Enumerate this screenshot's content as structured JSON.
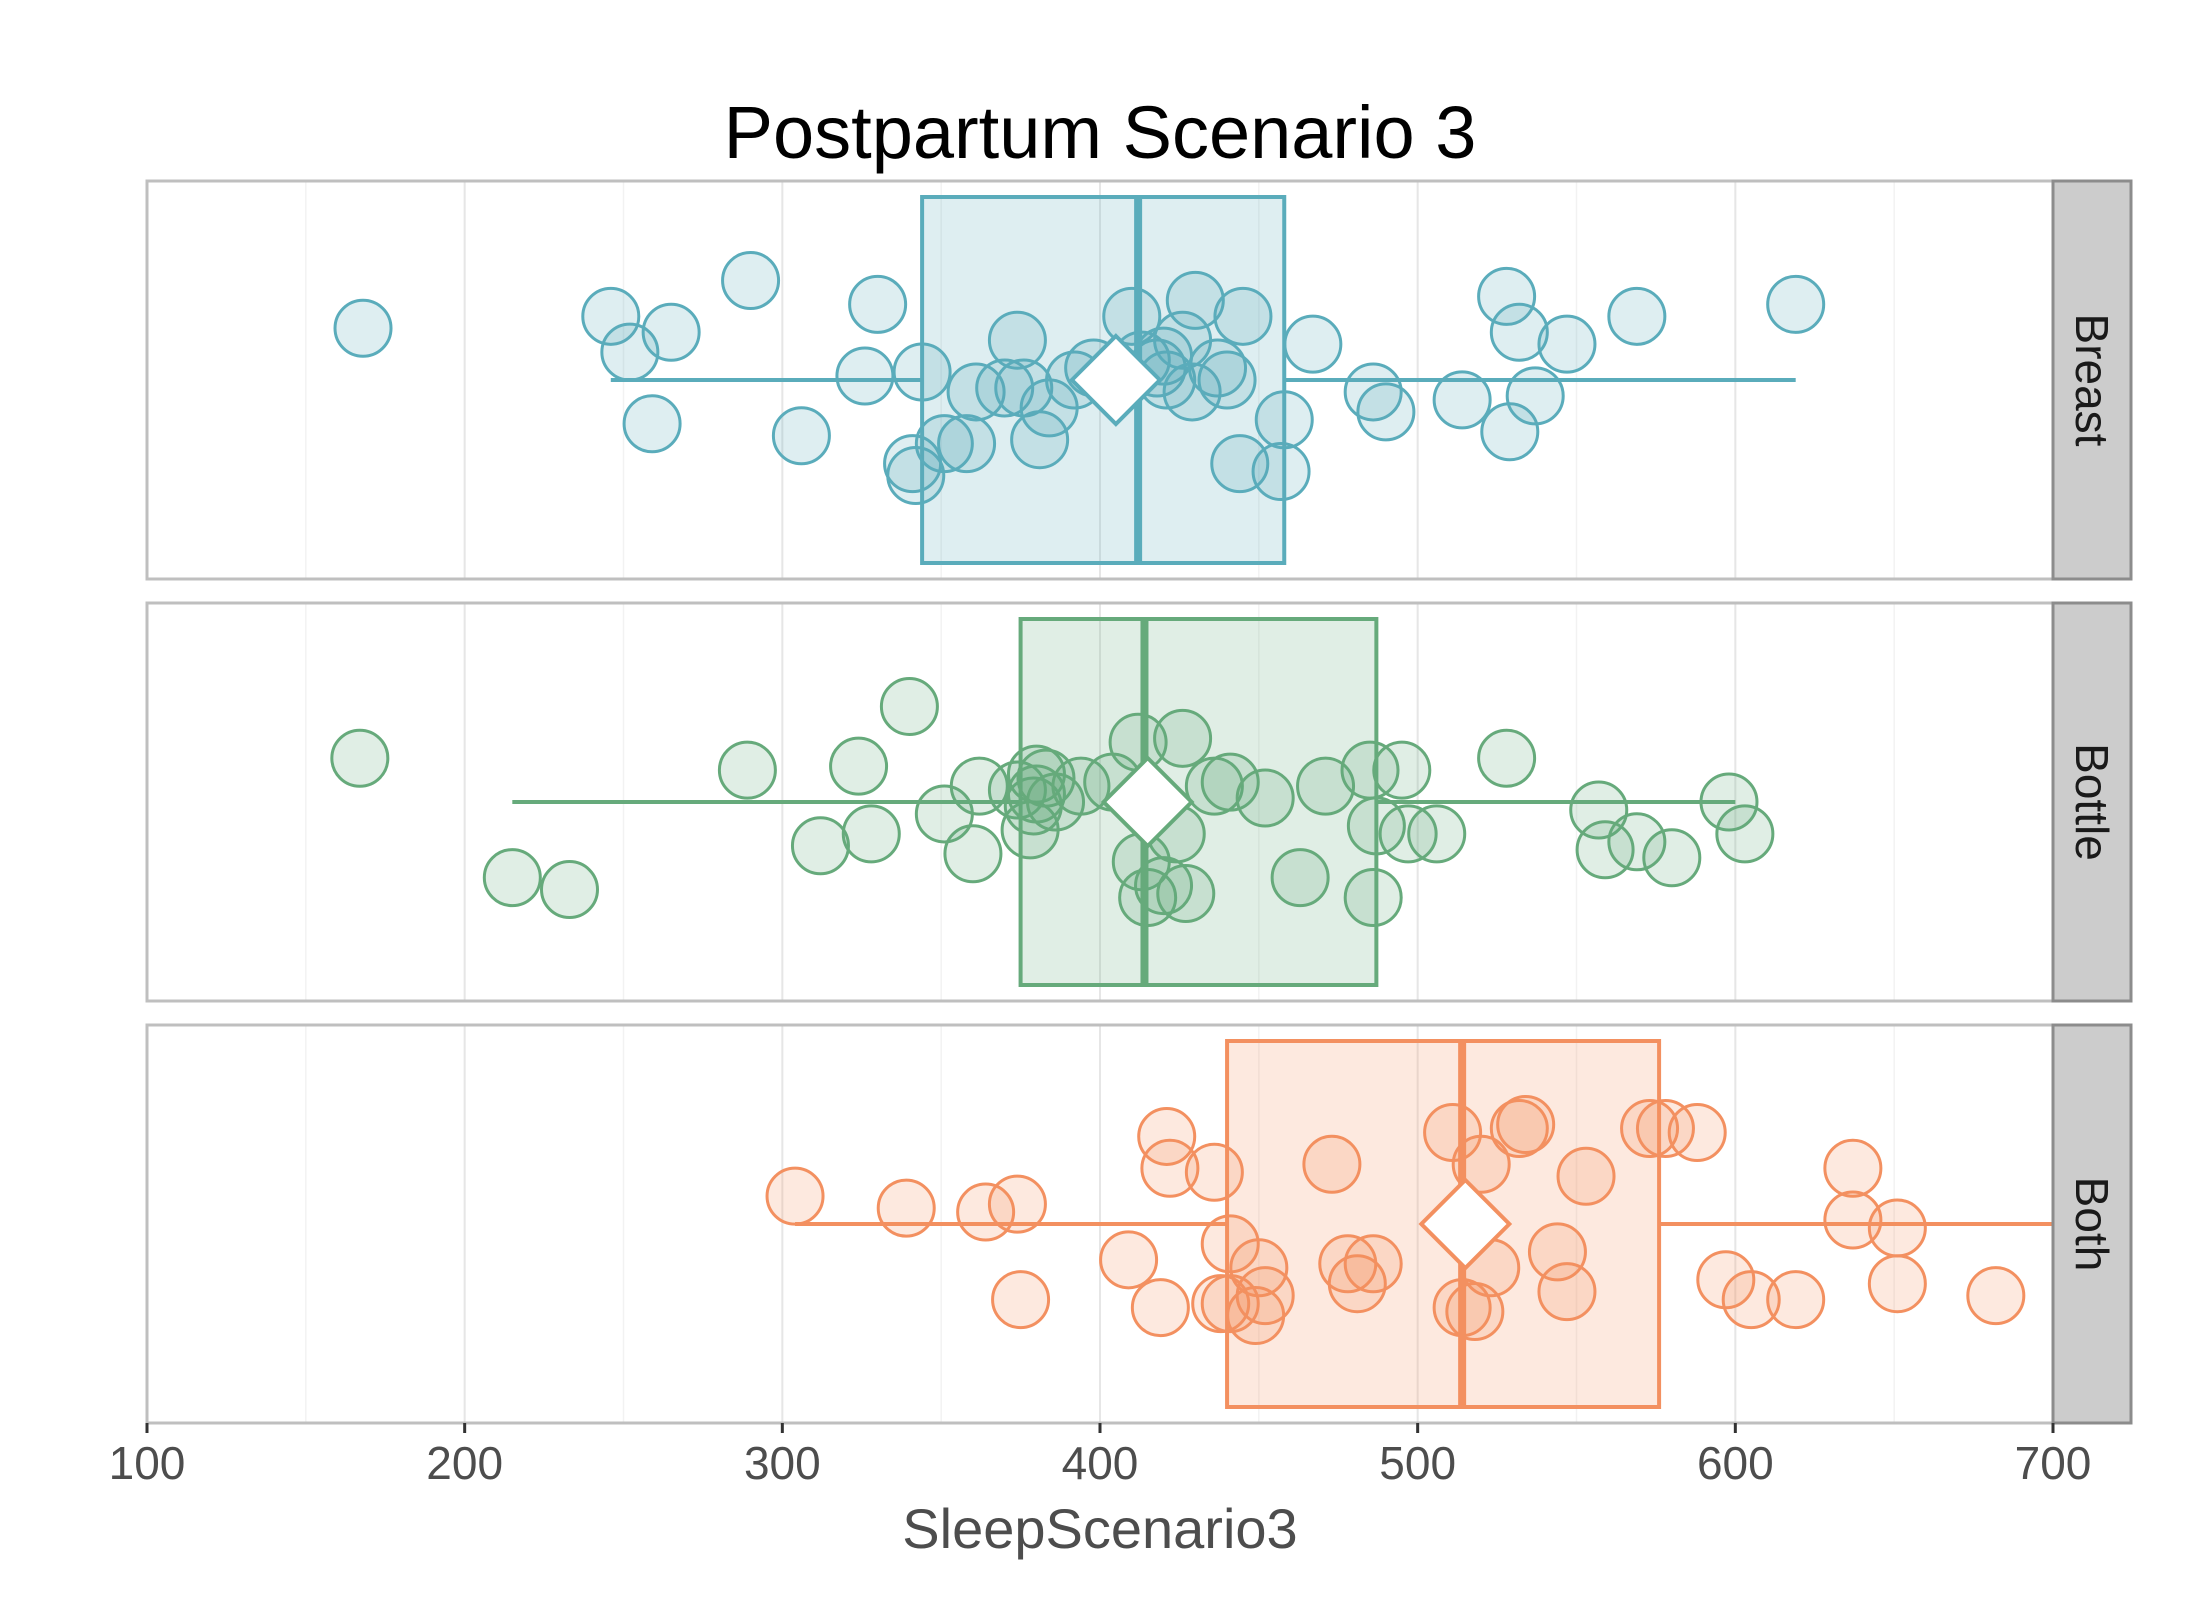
{
  "chart_data": {
    "type": "boxplot",
    "title": "Postpartum Scenario 3",
    "xlabel": "SleepScenario3",
    "xlim": [
      100,
      700
    ],
    "xticks": [
      100,
      200,
      300,
      400,
      500,
      600,
      700
    ],
    "grid": true,
    "colors": {
      "Breast": "#5aacbb",
      "Bottle": "#66aa7b",
      "Both": "#f39060"
    },
    "panels": [
      {
        "name": "Breast",
        "box": {
          "whisker_low": 246,
          "q1": 344,
          "median": 412,
          "q3": 458,
          "whisker_high": 619,
          "mean": 405
        },
        "points": [
          {
            "x": 168,
            "y": 0.63
          },
          {
            "x": 246,
            "y": 0.66
          },
          {
            "x": 252,
            "y": 0.57
          },
          {
            "x": 265,
            "y": 0.62
          },
          {
            "x": 259,
            "y": 0.39
          },
          {
            "x": 290,
            "y": 0.75
          },
          {
            "x": 306,
            "y": 0.36
          },
          {
            "x": 326,
            "y": 0.51
          },
          {
            "x": 330,
            "y": 0.69
          },
          {
            "x": 341,
            "y": 0.29
          },
          {
            "x": 342,
            "y": 0.26
          },
          {
            "x": 344,
            "y": 0.52
          },
          {
            "x": 351,
            "y": 0.34
          },
          {
            "x": 358,
            "y": 0.34
          },
          {
            "x": 361,
            "y": 0.47
          },
          {
            "x": 370,
            "y": 0.48
          },
          {
            "x": 374,
            "y": 0.6
          },
          {
            "x": 376,
            "y": 0.48
          },
          {
            "x": 381,
            "y": 0.35
          },
          {
            "x": 384,
            "y": 0.43
          },
          {
            "x": 392,
            "y": 0.5
          },
          {
            "x": 398,
            "y": 0.53
          },
          {
            "x": 410,
            "y": 0.66
          },
          {
            "x": 413,
            "y": 0.55
          },
          {
            "x": 418,
            "y": 0.53
          },
          {
            "x": 420,
            "y": 0.56
          },
          {
            "x": 421,
            "y": 0.5
          },
          {
            "x": 426,
            "y": 0.6
          },
          {
            "x": 429,
            "y": 0.47
          },
          {
            "x": 430,
            "y": 0.7
          },
          {
            "x": 437,
            "y": 0.53
          },
          {
            "x": 440,
            "y": 0.5
          },
          {
            "x": 444,
            "y": 0.29
          },
          {
            "x": 445,
            "y": 0.66
          },
          {
            "x": 457,
            "y": 0.27
          },
          {
            "x": 458,
            "y": 0.4
          },
          {
            "x": 467,
            "y": 0.59
          },
          {
            "x": 486,
            "y": 0.47
          },
          {
            "x": 490,
            "y": 0.42
          },
          {
            "x": 514,
            "y": 0.45
          },
          {
            "x": 528,
            "y": 0.71
          },
          {
            "x": 529,
            "y": 0.37
          },
          {
            "x": 532,
            "y": 0.62
          },
          {
            "x": 537,
            "y": 0.46
          },
          {
            "x": 547,
            "y": 0.59
          },
          {
            "x": 569,
            "y": 0.66
          },
          {
            "x": 619,
            "y": 0.69
          }
        ]
      },
      {
        "name": "Bottle",
        "box": {
          "whisker_low": 215,
          "q1": 375,
          "median": 414,
          "q3": 487,
          "whisker_high": 600,
          "mean": 415
        },
        "points": [
          {
            "x": 167,
            "y": 0.61
          },
          {
            "x": 215,
            "y": 0.31
          },
          {
            "x": 233,
            "y": 0.28
          },
          {
            "x": 289,
            "y": 0.58
          },
          {
            "x": 312,
            "y": 0.39
          },
          {
            "x": 324,
            "y": 0.59
          },
          {
            "x": 328,
            "y": 0.42
          },
          {
            "x": 340,
            "y": 0.74
          },
          {
            "x": 351,
            "y": 0.47
          },
          {
            "x": 360,
            "y": 0.37
          },
          {
            "x": 362,
            "y": 0.54
          },
          {
            "x": 374,
            "y": 0.53
          },
          {
            "x": 378,
            "y": 0.43
          },
          {
            "x": 379,
            "y": 0.49
          },
          {
            "x": 380,
            "y": 0.57
          },
          {
            "x": 380,
            "y": 0.52
          },
          {
            "x": 383,
            "y": 0.56
          },
          {
            "x": 386,
            "y": 0.5
          },
          {
            "x": 394,
            "y": 0.54
          },
          {
            "x": 404,
            "y": 0.55
          },
          {
            "x": 412,
            "y": 0.65
          },
          {
            "x": 413,
            "y": 0.35
          },
          {
            "x": 415,
            "y": 0.26
          },
          {
            "x": 420,
            "y": 0.29
          },
          {
            "x": 424,
            "y": 0.42
          },
          {
            "x": 426,
            "y": 0.66
          },
          {
            "x": 427,
            "y": 0.27
          },
          {
            "x": 436,
            "y": 0.54
          },
          {
            "x": 441,
            "y": 0.55
          },
          {
            "x": 452,
            "y": 0.51
          },
          {
            "x": 463,
            "y": 0.31
          },
          {
            "x": 471,
            "y": 0.54
          },
          {
            "x": 485,
            "y": 0.58
          },
          {
            "x": 486,
            "y": 0.26
          },
          {
            "x": 487,
            "y": 0.44
          },
          {
            "x": 495,
            "y": 0.58
          },
          {
            "x": 497,
            "y": 0.42
          },
          {
            "x": 506,
            "y": 0.42
          },
          {
            "x": 528,
            "y": 0.61
          },
          {
            "x": 557,
            "y": 0.48
          },
          {
            "x": 559,
            "y": 0.38
          },
          {
            "x": 569,
            "y": 0.4
          },
          {
            "x": 580,
            "y": 0.36
          },
          {
            "x": 598,
            "y": 0.5
          },
          {
            "x": 603,
            "y": 0.42
          }
        ]
      },
      {
        "name": "Both",
        "box": {
          "whisker_low": 304,
          "q1": 440,
          "median": 514,
          "q3": 576,
          "whisker_high": 700,
          "mean": 515
        },
        "points": [
          {
            "x": 304,
            "y": 0.57
          },
          {
            "x": 339,
            "y": 0.54
          },
          {
            "x": 364,
            "y": 0.53
          },
          {
            "x": 374,
            "y": 0.55
          },
          {
            "x": 375,
            "y": 0.31
          },
          {
            "x": 409,
            "y": 0.41
          },
          {
            "x": 419,
            "y": 0.29
          },
          {
            "x": 421,
            "y": 0.72
          },
          {
            "x": 422,
            "y": 0.64
          },
          {
            "x": 436,
            "y": 0.63
          },
          {
            "x": 438,
            "y": 0.3
          },
          {
            "x": 441,
            "y": 0.45
          },
          {
            "x": 441,
            "y": 0.3
          },
          {
            "x": 449,
            "y": 0.27
          },
          {
            "x": 450,
            "y": 0.39
          },
          {
            "x": 452,
            "y": 0.32
          },
          {
            "x": 473,
            "y": 0.65
          },
          {
            "x": 478,
            "y": 0.4
          },
          {
            "x": 481,
            "y": 0.35
          },
          {
            "x": 486,
            "y": 0.4
          },
          {
            "x": 511,
            "y": 0.73
          },
          {
            "x": 514,
            "y": 0.29
          },
          {
            "x": 518,
            "y": 0.28
          },
          {
            "x": 520,
            "y": 0.65
          },
          {
            "x": 523,
            "y": 0.39
          },
          {
            "x": 532,
            "y": 0.74
          },
          {
            "x": 534,
            "y": 0.75
          },
          {
            "x": 544,
            "y": 0.43
          },
          {
            "x": 547,
            "y": 0.33
          },
          {
            "x": 553,
            "y": 0.62
          },
          {
            "x": 573,
            "y": 0.74
          },
          {
            "x": 578,
            "y": 0.74
          },
          {
            "x": 588,
            "y": 0.73
          },
          {
            "x": 597,
            "y": 0.36
          },
          {
            "x": 605,
            "y": 0.31
          },
          {
            "x": 619,
            "y": 0.31
          },
          {
            "x": 637,
            "y": 0.64
          },
          {
            "x": 637,
            "y": 0.51
          },
          {
            "x": 651,
            "y": 0.49
          },
          {
            "x": 651,
            "y": 0.35
          },
          {
            "x": 682,
            "y": 0.32
          }
        ]
      }
    ]
  }
}
